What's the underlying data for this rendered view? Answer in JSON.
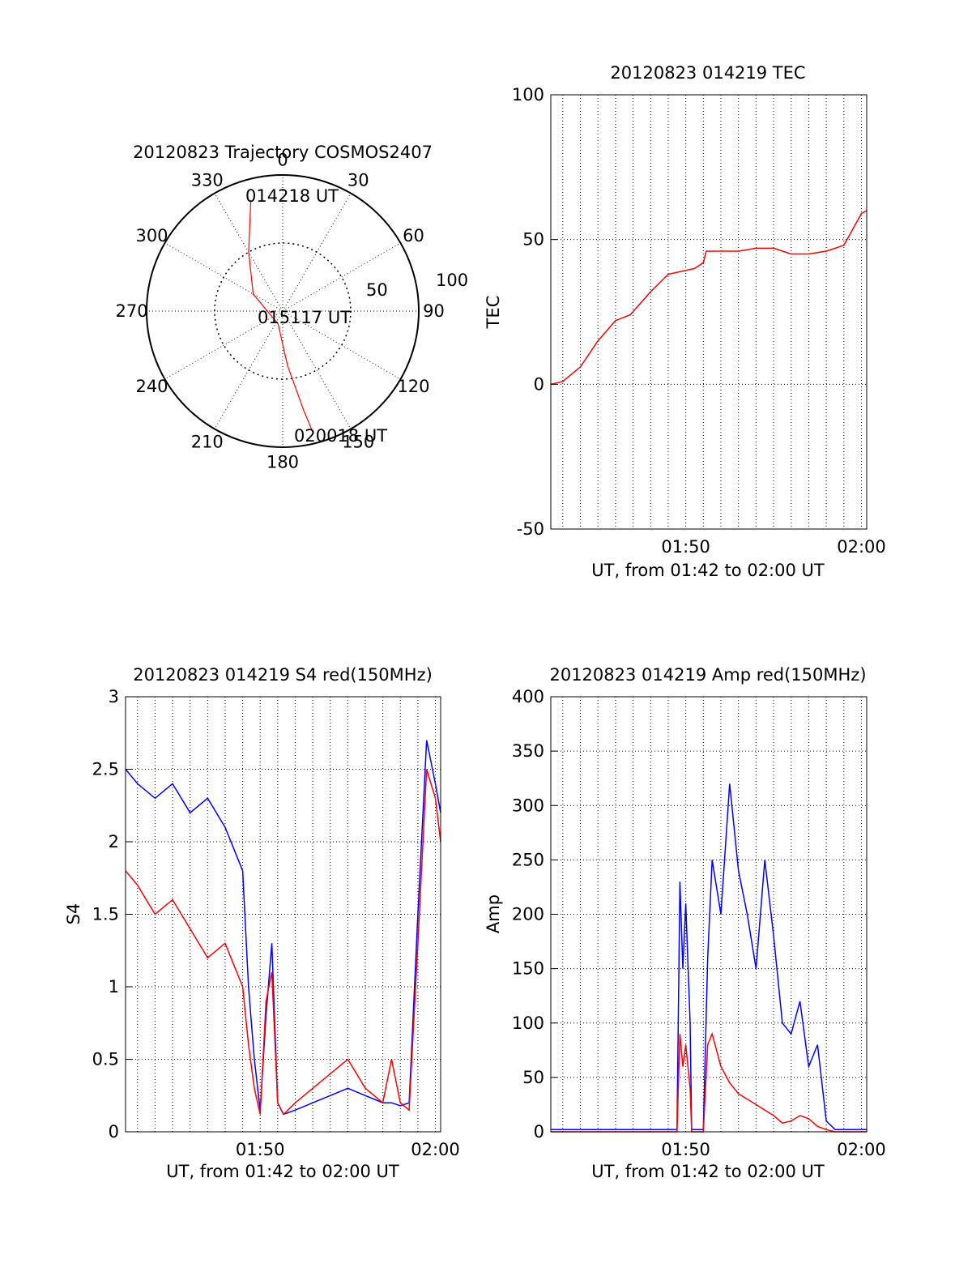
{
  "colors": {
    "red_series": "#ff0000",
    "blue_series": "#0000ff",
    "axis": "#000000",
    "grid": "#000000"
  },
  "chart_data": [
    {
      "id": "trajectory",
      "type": "polar",
      "title": "20120823 Trajectory COSMOS2407",
      "angle_labels": [
        "0",
        "30",
        "60",
        "90",
        "120",
        "150",
        "180",
        "210",
        "240",
        "270",
        "300",
        "330"
      ],
      "radial_labels": [
        "50",
        "100"
      ],
      "rlim": [
        0,
        100
      ],
      "grid": true,
      "series": [
        {
          "color": "#ff0000",
          "points": [
            {
              "az": 344,
              "r": 85
            },
            {
              "az": 330,
              "r": 50
            },
            {
              "az": 300,
              "r": 25
            },
            {
              "az": 200,
              "r": 10
            },
            {
              "az": 175,
              "r": 40
            },
            {
              "az": 168,
              "r": 75
            },
            {
              "az": 166,
              "r": 92
            }
          ]
        }
      ],
      "annotations": [
        "014218 UT",
        "015117 UT",
        "020018 UT"
      ]
    },
    {
      "id": "tec",
      "type": "line",
      "title": "20120823 014219 TEC",
      "xlabel": "UT, from 01:42 to 02:00 UT",
      "ylabel": "TEC",
      "xlim": [
        "01:42:19",
        "02:00:18"
      ],
      "ylim": [
        -50,
        100
      ],
      "yticks": [
        "-50",
        "0",
        "50",
        "100"
      ],
      "xticks": [
        {
          "t": "01:50:00",
          "label": "01:50"
        },
        {
          "t": "02:00:00",
          "label": "02:00"
        }
      ],
      "grid": true,
      "series": [
        {
          "color": "#ff0000",
          "x": [
            "01:42:19",
            "01:43:00",
            "01:44:00",
            "01:45:00",
            "01:46:00",
            "01:46:50",
            "01:48:00",
            "01:49:00",
            "01:50:30",
            "01:51:00",
            "01:51:10",
            "01:52:00",
            "01:53:00",
            "01:54:00",
            "01:55:00",
            "01:56:00",
            "01:57:00",
            "01:58:00",
            "01:59:00",
            "02:00:00",
            "02:00:18"
          ],
          "y": [
            0,
            1,
            6,
            15,
            22,
            24,
            32,
            38,
            40,
            42,
            46,
            46,
            46,
            47,
            47,
            45,
            45,
            46,
            48,
            59,
            60
          ]
        }
      ]
    },
    {
      "id": "s4",
      "type": "line",
      "title": "20120823 014219 S4 red(150MHz)",
      "xlabel": "UT, from 01:42 to 02:00 UT",
      "ylabel": "S4",
      "xlim": [
        "01:42:19",
        "02:00:18"
      ],
      "ylim": [
        0,
        3
      ],
      "yticks": [
        "0",
        "0.5",
        "1",
        "1.5",
        "2",
        "2.5",
        "3"
      ],
      "xticks": [
        {
          "t": "01:50:00",
          "label": "01:50"
        },
        {
          "t": "02:00:00",
          "label": "02:00"
        }
      ],
      "grid": true,
      "series": [
        {
          "color": "#0000ff",
          "x": [
            "01:42:19",
            "01:43:00",
            "01:44:00",
            "01:45:00",
            "01:46:00",
            "01:47:00",
            "01:48:00",
            "01:49:00",
            "01:49:20",
            "01:49:40",
            "01:50:00",
            "01:50:20",
            "01:50:40",
            "01:51:00",
            "01:51:20",
            "01:52:00",
            "01:53:00",
            "01:54:00",
            "01:55:00",
            "01:56:00",
            "01:57:00",
            "01:57:30",
            "01:58:00",
            "01:58:30",
            "01:59:00",
            "01:59:30",
            "02:00:00",
            "02:00:18"
          ],
          "y": [
            2.5,
            2.4,
            2.3,
            2.4,
            2.2,
            2.3,
            2.1,
            1.8,
            1.0,
            0.5,
            0.15,
            0.8,
            1.3,
            0.2,
            0.12,
            0.15,
            0.2,
            0.25,
            0.3,
            0.25,
            0.2,
            0.2,
            0.18,
            0.2,
            1.5,
            2.7,
            2.4,
            2.2
          ]
        },
        {
          "color": "#ff0000",
          "x": [
            "01:42:19",
            "01:43:00",
            "01:44:00",
            "01:45:00",
            "01:46:00",
            "01:47:00",
            "01:48:00",
            "01:49:00",
            "01:49:20",
            "01:49:40",
            "01:50:00",
            "01:50:20",
            "01:50:40",
            "01:51:00",
            "01:51:20",
            "01:52:00",
            "01:53:00",
            "01:54:00",
            "01:55:00",
            "01:56:00",
            "01:57:00",
            "01:57:30",
            "01:58:00",
            "01:58:30",
            "01:59:00",
            "01:59:30",
            "02:00:00",
            "02:00:18"
          ],
          "y": [
            1.8,
            1.7,
            1.5,
            1.6,
            1.4,
            1.2,
            1.3,
            1.0,
            0.6,
            0.3,
            0.12,
            0.9,
            1.1,
            0.2,
            0.12,
            0.2,
            0.3,
            0.4,
            0.5,
            0.3,
            0.2,
            0.5,
            0.2,
            0.15,
            1.3,
            2.5,
            2.3,
            2.0
          ]
        }
      ]
    },
    {
      "id": "amp",
      "type": "line",
      "title": "20120823 014219 Amp red(150MHz)",
      "xlabel": "UT, from 01:42 to 02:00 UT",
      "ylabel": "Amp",
      "xlim": [
        "01:42:19",
        "02:00:18"
      ],
      "ylim": [
        0,
        400
      ],
      "yticks": [
        "0",
        "50",
        "100",
        "150",
        "200",
        "250",
        "300",
        "350",
        "400"
      ],
      "xticks": [
        {
          "t": "01:50:00",
          "label": "01:50"
        },
        {
          "t": "02:00:00",
          "label": "02:00"
        }
      ],
      "grid": true,
      "series": [
        {
          "color": "#0000ff",
          "x": [
            "01:42:19",
            "01:44:00",
            "01:46:00",
            "01:48:00",
            "01:49:30",
            "01:49:40",
            "01:49:50",
            "01:50:00",
            "01:50:15",
            "01:50:20",
            "01:50:40",
            "01:51:00",
            "01:51:15",
            "01:51:30",
            "01:52:00",
            "01:52:30",
            "01:53:00",
            "01:53:30",
            "01:54:00",
            "01:54:30",
            "01:55:00",
            "01:55:30",
            "01:56:00",
            "01:56:30",
            "01:57:00",
            "01:57:30",
            "01:58:00",
            "01:58:30",
            "02:00:00",
            "02:00:18"
          ],
          "y": [
            2,
            2,
            2,
            2,
            2,
            230,
            150,
            210,
            100,
            2,
            2,
            2,
            160,
            250,
            200,
            320,
            240,
            200,
            150,
            250,
            180,
            100,
            90,
            120,
            60,
            80,
            10,
            2,
            2,
            2
          ]
        },
        {
          "color": "#ff0000",
          "x": [
            "01:42:19",
            "01:44:00",
            "01:46:00",
            "01:48:00",
            "01:49:30",
            "01:49:40",
            "01:49:50",
            "01:50:00",
            "01:50:15",
            "01:50:20",
            "01:50:40",
            "01:51:00",
            "01:51:15",
            "01:51:30",
            "01:52:00",
            "01:52:30",
            "01:53:00",
            "01:53:30",
            "01:54:00",
            "01:54:30",
            "01:55:00",
            "01:55:30",
            "01:56:00",
            "01:56:30",
            "01:57:00",
            "01:57:30",
            "01:58:00",
            "01:58:30",
            "02:00:00",
            "02:00:18"
          ],
          "y": [
            0,
            0,
            0,
            0,
            0,
            90,
            60,
            80,
            40,
            0,
            0,
            0,
            80,
            90,
            60,
            45,
            35,
            30,
            25,
            20,
            15,
            8,
            10,
            15,
            12,
            5,
            2,
            0,
            0,
            0
          ]
        }
      ]
    }
  ]
}
